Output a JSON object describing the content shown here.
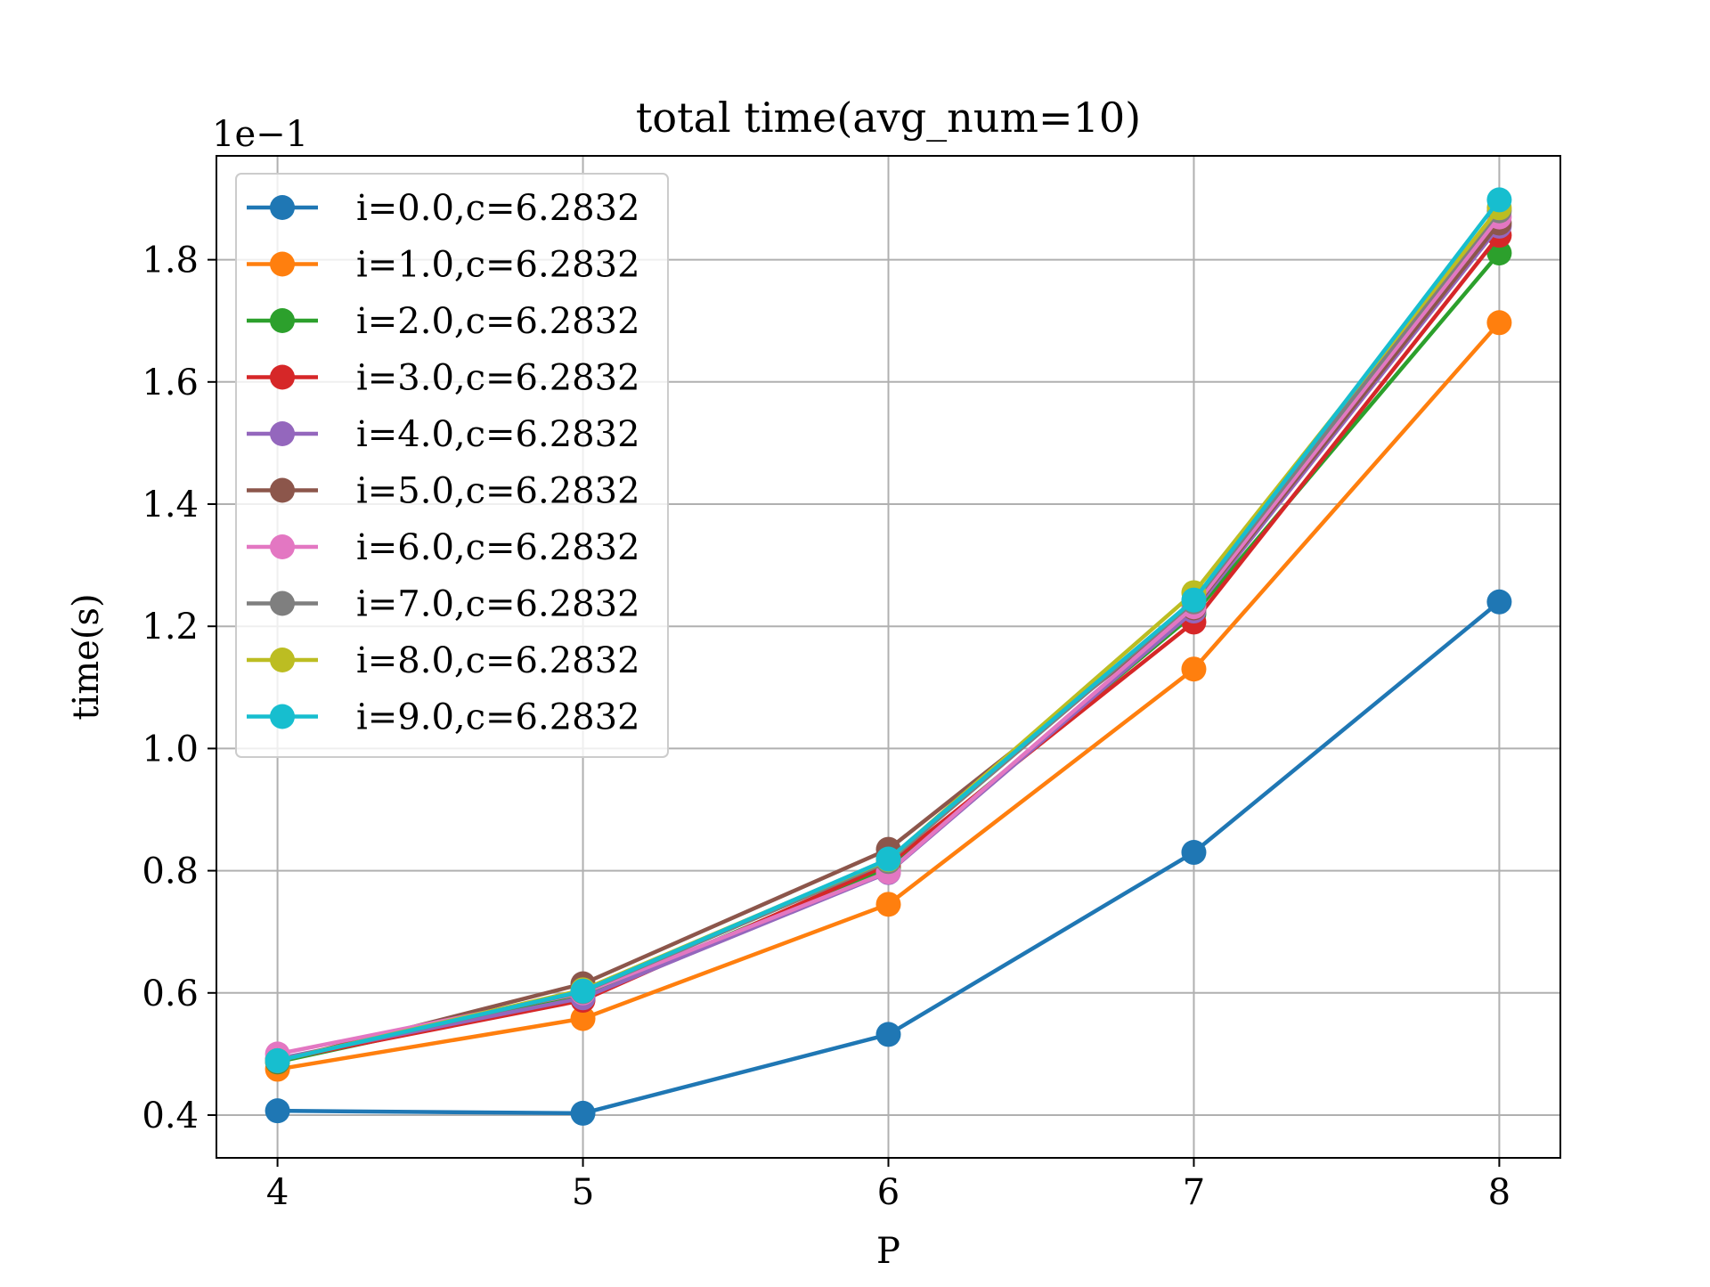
{
  "chart_data": {
    "type": "line",
    "title": "total time(avg_num=10)",
    "xlabel": "P",
    "ylabel": "time(s)",
    "y_offset_label": "1e−1",
    "x": [
      4,
      5,
      6,
      7,
      8
    ],
    "x_tick_labels": [
      "4",
      "5",
      "6",
      "7",
      "8"
    ],
    "y_ticks": [
      0.4,
      0.6,
      0.8,
      1.0,
      1.2,
      1.4,
      1.6,
      1.8
    ],
    "y_tick_labels": [
      "0.4",
      "0.6",
      "0.8",
      "1.0",
      "1.2",
      "1.4",
      "1.6",
      "1.8"
    ],
    "xlim": [
      3.8,
      8.2
    ],
    "ylim": [
      0.33,
      1.97
    ],
    "grid": true,
    "legend_position": "upper-left",
    "marker": "circle",
    "series": [
      {
        "name": "i=0.0,c=6.2832",
        "color": "#1f77b4",
        "values": [
          0.407,
          0.403,
          0.532,
          0.83,
          1.24
        ]
      },
      {
        "name": "i=1.0,c=6.2832",
        "color": "#ff7f0e",
        "values": [
          0.475,
          0.558,
          0.745,
          1.13,
          1.697
        ]
      },
      {
        "name": "i=2.0,c=6.2832",
        "color": "#2ca02c",
        "values": [
          0.487,
          0.595,
          0.805,
          1.22,
          1.811
        ]
      },
      {
        "name": "i=3.0,c=6.2832",
        "color": "#d62728",
        "values": [
          0.49,
          0.588,
          0.81,
          1.207,
          1.84
        ]
      },
      {
        "name": "i=4.0,c=6.2832",
        "color": "#9467bd",
        "values": [
          0.492,
          0.592,
          0.797,
          1.225,
          1.855
        ]
      },
      {
        "name": "i=5.0,c=6.2832",
        "color": "#8c564b",
        "values": [
          0.488,
          0.615,
          0.835,
          1.23,
          1.86
        ]
      },
      {
        "name": "i=6.0,c=6.2832",
        "color": "#e377c2",
        "values": [
          0.5,
          0.6,
          0.798,
          1.232,
          1.87
        ]
      },
      {
        "name": "i=7.0,c=6.2832",
        "color": "#7f7f7f",
        "values": [
          0.489,
          0.602,
          0.815,
          1.24,
          1.88
        ]
      },
      {
        "name": "i=8.0,c=6.2832",
        "color": "#bcbd22",
        "values": [
          0.489,
          0.605,
          0.818,
          1.255,
          1.885
        ]
      },
      {
        "name": "i=9.0,c=6.2832",
        "color": "#17becf",
        "values": [
          0.489,
          0.603,
          0.819,
          1.243,
          1.898
        ]
      }
    ]
  }
}
